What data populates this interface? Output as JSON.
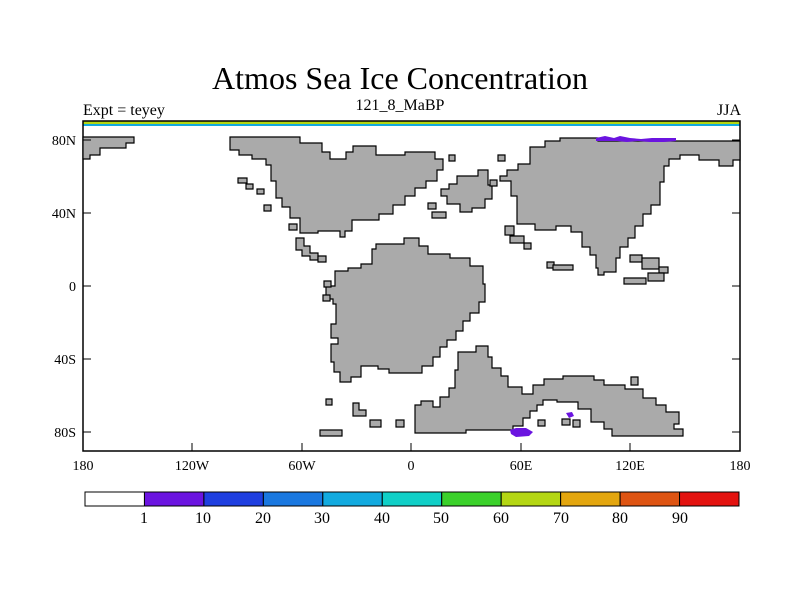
{
  "title": "Atmos Sea Ice Concentration",
  "left_subtitle": "Expt = teyey",
  "center_subtitle": "121_8_MaBP",
  "right_subtitle": "JJA",
  "lat_labels": [
    "80N",
    "40N",
    "0",
    "40S",
    "80S"
  ],
  "lon_labels": [
    "180",
    "120W",
    "60W",
    "0",
    "60E",
    "120E",
    "180"
  ],
  "colorbar": {
    "labels": [
      "1",
      "10",
      "20",
      "30",
      "40",
      "50",
      "60",
      "70",
      "80",
      "90"
    ],
    "colors": [
      "#ffffff",
      "#6b14e0",
      "#1f3fe0",
      "#1a78e0",
      "#12aadf",
      "#10cfc7",
      "#3bd12b",
      "#b4d613",
      "#e3a60e",
      "#de5412",
      "#e3120f"
    ]
  },
  "land_color": "#aaaaaa",
  "ice_color": "#6b14e0"
}
